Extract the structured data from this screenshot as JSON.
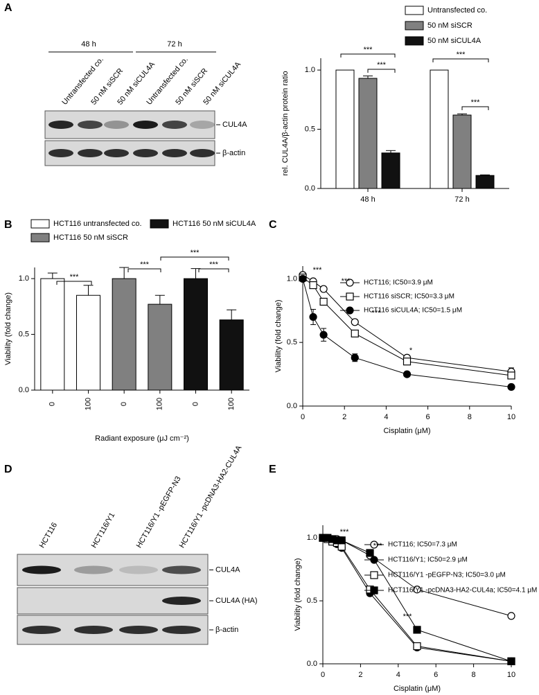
{
  "panel_labels": [
    "A",
    "B",
    "C",
    "D",
    "E"
  ],
  "blots": [
    {
      "time_labels": [
        "48 h",
        "72 h"
      ],
      "lanes": [
        "Untransfected co.",
        "50 nM siSCR",
        "50 nM siCUL4A",
        "Untransfected co.",
        "50 nM siSCR",
        "50 nM siCUL4A"
      ],
      "bands": [
        "CUL4A",
        "β-actin"
      ]
    },
    {
      "lanes": [
        "HCT116",
        "HCT116/Y1",
        "HCT116/Y1 -pEGFP-N3",
        "HCT116/Y1 -pcDNA3-HA2-CUL4A"
      ],
      "bands": [
        "CUL4A",
        "CUL4A (HA)",
        "β-actin"
      ]
    }
  ],
  "chart_data": [
    {
      "type": "bar",
      "ylabel": "rel. CUL4A/β-actin protein ratio",
      "categories": [
        "48 h",
        "72 h"
      ],
      "series": [
        {
          "name": "Untransfected co.",
          "color": "#ffffff",
          "values": [
            1.0,
            1.0
          ]
        },
        {
          "name": "50 nM siSCR",
          "color": "#808080",
          "values": [
            0.93,
            0.62
          ],
          "errors": [
            0.02,
            0.01
          ]
        },
        {
          "name": "50 nM siCUL4A",
          "color": "#111111",
          "values": [
            0.3,
            0.11
          ],
          "errors": [
            0.02,
            0.005
          ]
        }
      ],
      "ylim": [
        0,
        1.1
      ],
      "yticks": [
        {
          "value": 0,
          "label": "0.0"
        },
        {
          "value": 0.5,
          "label": "0.5"
        },
        {
          "value": 1,
          "label": "1.0"
        }
      ],
      "annotations": [
        "***",
        "***",
        "***",
        "***"
      ]
    },
    {
      "type": "bar",
      "ylabel": "Viability (fold change)",
      "xlabel": "Radiant exposure (μJ cm⁻²)",
      "categories": [
        "0",
        "100",
        "0",
        "100",
        "0",
        "100"
      ],
      "series": [
        {
          "name": "HCT116 untransfected co.",
          "color": "#ffffff",
          "values": [
            1.0,
            0.85,
            null,
            null,
            null,
            null
          ],
          "errors": [
            0.05,
            0.09,
            null,
            null,
            null,
            null
          ]
        },
        {
          "name": "HCT116 50 nM siSCR",
          "color": "#808080",
          "values": [
            null,
            null,
            1.0,
            0.77,
            null,
            null
          ],
          "errors": [
            null,
            null,
            0.1,
            0.08,
            null,
            null
          ]
        },
        {
          "name": "HCT116 50 nM siCUL4A",
          "color": "#111111",
          "values": [
            null,
            null,
            null,
            null,
            1.0,
            0.63
          ],
          "errors": [
            null,
            null,
            null,
            null,
            0.09,
            0.09
          ]
        }
      ],
      "ylim": [
        0,
        1.1
      ],
      "yticks": [
        {
          "value": 0,
          "label": "0.0"
        },
        {
          "value": 0.5,
          "label": "0.5"
        },
        {
          "value": 1,
          "label": "1.0"
        }
      ],
      "annotations": [
        "***",
        "***",
        "***",
        "***"
      ]
    },
    {
      "type": "line",
      "ylabel": "Viability (fold change)",
      "xlabel": "Cisplatin (μM)",
      "x": [
        0,
        0.5,
        1,
        2.5,
        5,
        10
      ],
      "series": [
        {
          "name": "HCT116; IC50=3.9 μM",
          "color": "#000000",
          "marker": "circle",
          "filled": false,
          "values": [
            1.03,
            0.98,
            0.92,
            0.66,
            0.38,
            0.27
          ],
          "errors": [
            0.02,
            0.02,
            0.02,
            0.02,
            0.02,
            0.03
          ]
        },
        {
          "name": "HCT116 siSCR; IC50=3.3 μM",
          "color": "#000000",
          "marker": "square",
          "filled": false,
          "values": [
            1.01,
            0.95,
            0.82,
            0.57,
            0.35,
            0.24
          ],
          "errors": [
            0.02,
            0.02,
            0.02,
            0.02,
            0.02,
            0.02
          ]
        },
        {
          "name": "HCT116 siCUL4A; IC50=1.5 μM",
          "color": "#000000",
          "marker": "circle",
          "filled": true,
          "values": [
            1.0,
            0.7,
            0.56,
            0.38,
            0.25,
            0.15
          ],
          "errors": [
            0.02,
            0.06,
            0.05,
            0.03,
            0.01,
            0.01
          ]
        }
      ],
      "xlim": [
        0,
        10
      ],
      "xticks": [
        0,
        2,
        4,
        6,
        8,
        10
      ],
      "ylim": [
        0,
        1.1
      ],
      "yticks": [
        {
          "value": 0,
          "label": "0.0"
        },
        {
          "value": 0.5,
          "label": "0.5"
        },
        {
          "value": 1,
          "label": "1.0"
        }
      ],
      "annotations": [
        "***",
        "***",
        "***",
        "*"
      ]
    },
    {
      "type": "line",
      "ylabel": "Viability (fold change)",
      "xlabel": "Cisplatin (μM)",
      "x": [
        0,
        0.25,
        0.5,
        0.75,
        1,
        2.5,
        5,
        10
      ],
      "series": [
        {
          "name": "HCT116; IC50=7.3 μM",
          "color": "#000000",
          "marker": "circle",
          "filled": false,
          "values": [
            1.0,
            1.0,
            0.99,
            0.99,
            0.98,
            0.86,
            0.59,
            0.38
          ]
        },
        {
          "name": "HCT116/Y1; IC50=2.9 μM",
          "color": "#000000",
          "marker": "circle",
          "filled": true,
          "values": [
            1.0,
            0.99,
            0.97,
            0.95,
            0.92,
            0.56,
            0.13,
            0.02
          ]
        },
        {
          "name": "HCT116/Y1 -pEGFP-N3; IC50=3.0 μM",
          "color": "#000000",
          "marker": "square",
          "filled": false,
          "values": [
            1.0,
            0.99,
            0.97,
            0.96,
            0.93,
            0.59,
            0.14,
            0.02
          ]
        },
        {
          "name": "HCT116/Y1 -pcDNA3-HA2-CUL4a; IC50=4.1 μM",
          "color": "#000000",
          "marker": "square",
          "filled": true,
          "values": [
            1.0,
            1.0,
            0.99,
            0.98,
            0.98,
            0.88,
            0.27,
            0.02
          ]
        }
      ],
      "xlim": [
        0,
        10
      ],
      "xticks": [
        0,
        2,
        4,
        6,
        8,
        10
      ],
      "ylim": [
        0,
        1.1
      ],
      "yticks": [
        {
          "value": 0,
          "label": "0.0"
        },
        {
          "value": 0.5,
          "label": "0.5"
        },
        {
          "value": 1,
          "label": "1.0"
        }
      ],
      "annotations": [
        "***",
        "***",
        "***"
      ]
    }
  ]
}
